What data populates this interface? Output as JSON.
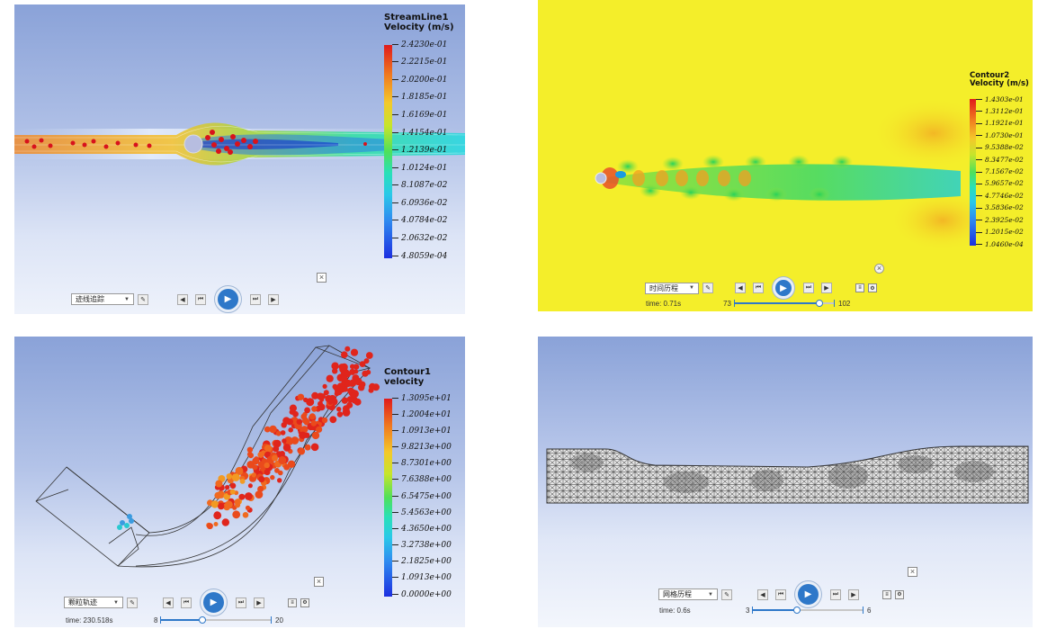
{
  "panels": [
    {
      "legend": {
        "title1": "StreamLine1",
        "title2": "Velocity (m/s)",
        "ticks": [
          "2.4230e-01",
          "2.2215e-01",
          "2.0200e-01",
          "1.8185e-01",
          "1.6169e-01",
          "1.4154e-01",
          "1.2139e-01",
          "1.0124e-01",
          "8.1087e-02",
          "6.0936e-02",
          "4.0784e-02",
          "2.0632e-02",
          "4.8059e-04"
        ]
      },
      "controls": {
        "dropdown": "迹线追踪"
      }
    },
    {
      "legend": {
        "title1": "Contour2",
        "title2": "Velocity (m/s)",
        "ticks": [
          "1.4303e-01",
          "1.3112e-01",
          "1.1921e-01",
          "1.0730e-01",
          "9.5388e-02",
          "8.3477e-02",
          "7.1567e-02",
          "5.9657e-02",
          "4.7746e-02",
          "3.5836e-02",
          "2.3925e-02",
          "1.2015e-02",
          "1.0460e-04"
        ]
      },
      "controls": {
        "dropdown": "时间历程",
        "time": "time: 0.71s",
        "slider_min": "73",
        "slider_max": "102",
        "slider_value": 0.85
      }
    },
    {
      "legend": {
        "title1": "Contour1",
        "title2": "velocity",
        "ticks": [
          "1.3095e+01",
          "1.2004e+01",
          "1.0913e+01",
          "9.8213e+00",
          "8.7301e+00",
          "7.6388e+00",
          "6.5475e+00",
          "5.4563e+00",
          "4.3650e+00",
          "3.2738e+00",
          "2.1825e+00",
          "1.0913e+00",
          "0.0000e+00"
        ]
      },
      "controls": {
        "dropdown": "颗粒轨迹",
        "time": "time: 230.518s",
        "slider_min": "8",
        "slider_max": "20",
        "slider_value": 0.38
      }
    },
    {
      "controls": {
        "dropdown": "网格历程",
        "time": "time: 0.6s",
        "slider_min": "3",
        "slider_max": "6",
        "slider_value": 0.4
      }
    }
  ],
  "icons": {
    "edit": "pencil-icon",
    "first": "skip-back-icon",
    "prev": "step-back-icon",
    "play": "play-icon",
    "next": "step-forward-icon",
    "last": "skip-forward-icon",
    "close": "close-icon"
  },
  "colors": {
    "accent": "#2e78c9",
    "contour_background": "#f4ee2a"
  }
}
